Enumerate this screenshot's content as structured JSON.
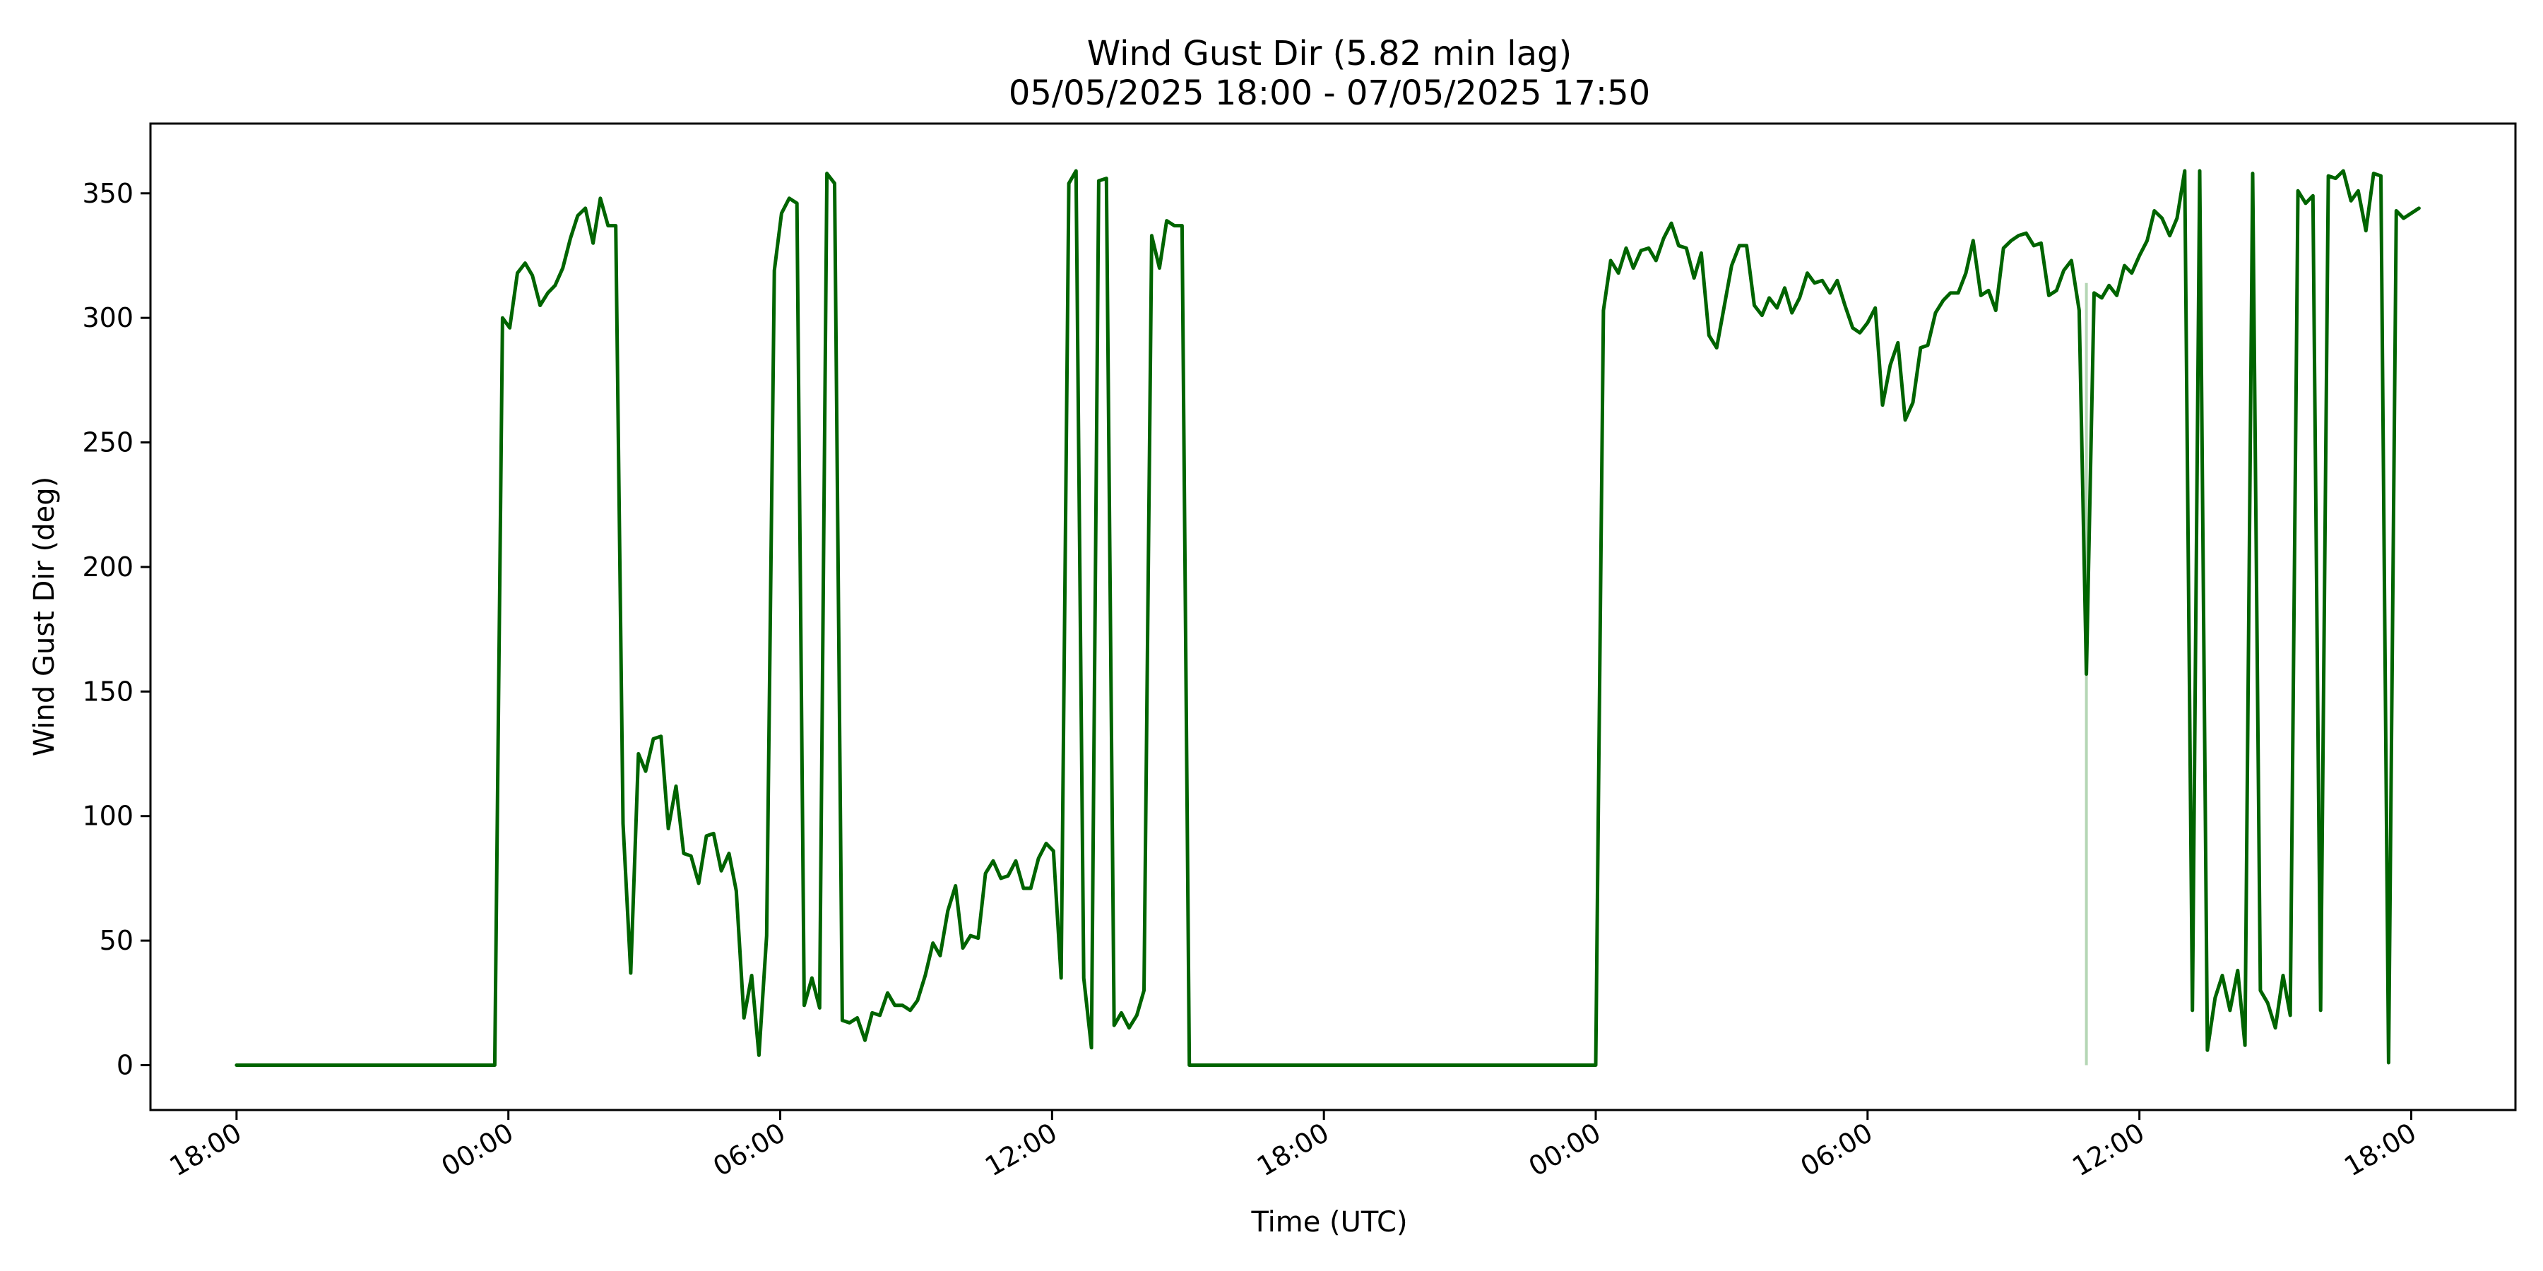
{
  "chart_data": {
    "type": "line",
    "title": "Wind Gust Dir (5.82 min lag)",
    "subtitle": "05/05/2025 18:00 - 07/05/2025 17:50",
    "xlabel": "Time (UTC)",
    "ylabel": "Wind Gust Dir (deg)",
    "x_unit": "hours since 05/05/2025 18:00 UTC",
    "xlim": [
      -1.9,
      50.3
    ],
    "ylim": [
      -18,
      378
    ],
    "grid": false,
    "line_color": "#006400",
    "x_ticks": [
      {
        "value": 0,
        "label": "18:00"
      },
      {
        "value": 6,
        "label": "00:00"
      },
      {
        "value": 12,
        "label": "06:00"
      },
      {
        "value": 18,
        "label": "12:00"
      },
      {
        "value": 24,
        "label": "18:00"
      },
      {
        "value": 30,
        "label": "00:00"
      },
      {
        "value": 36,
        "label": "06:00"
      },
      {
        "value": 42,
        "label": "12:00"
      },
      {
        "value": 48,
        "label": "18:00"
      }
    ],
    "y_ticks": [
      0,
      50,
      100,
      150,
      200,
      250,
      300,
      350
    ],
    "series": [
      {
        "name": "",
        "points": [
          [
            0.0,
            0
          ],
          [
            5.7,
            0
          ],
          [
            5.87,
            300
          ],
          [
            6.03,
            296
          ],
          [
            6.2,
            318
          ],
          [
            6.37,
            322
          ],
          [
            6.53,
            317
          ],
          [
            6.7,
            305
          ],
          [
            6.87,
            310
          ],
          [
            7.03,
            313
          ],
          [
            7.2,
            320
          ],
          [
            7.37,
            332
          ],
          [
            7.53,
            341
          ],
          [
            7.7,
            344
          ],
          [
            7.87,
            330
          ],
          [
            8.03,
            348
          ],
          [
            8.2,
            337
          ],
          [
            8.37,
            337
          ],
          [
            8.53,
            97
          ],
          [
            8.7,
            37
          ],
          [
            8.87,
            125
          ],
          [
            9.03,
            118
          ],
          [
            9.2,
            131
          ],
          [
            9.37,
            132
          ],
          [
            9.53,
            95
          ],
          [
            9.7,
            112
          ],
          [
            9.87,
            85
          ],
          [
            10.03,
            84
          ],
          [
            10.2,
            73
          ],
          [
            10.37,
            92
          ],
          [
            10.53,
            93
          ],
          [
            10.7,
            78
          ],
          [
            10.87,
            85
          ],
          [
            11.03,
            70
          ],
          [
            11.2,
            19
          ],
          [
            11.37,
            36
          ],
          [
            11.53,
            4
          ],
          [
            11.7,
            52
          ],
          [
            11.87,
            319
          ],
          [
            12.03,
            342
          ],
          [
            12.2,
            348
          ],
          [
            12.37,
            346
          ],
          [
            12.53,
            24
          ],
          [
            12.7,
            35
          ],
          [
            12.87,
            23
          ],
          [
            13.03,
            358
          ],
          [
            13.2,
            354
          ],
          [
            13.37,
            18
          ],
          [
            13.53,
            17
          ],
          [
            13.7,
            19
          ],
          [
            13.87,
            10
          ],
          [
            14.03,
            21
          ],
          [
            14.2,
            20
          ],
          [
            14.37,
            29
          ],
          [
            14.53,
            24
          ],
          [
            14.7,
            24
          ],
          [
            14.87,
            22
          ],
          [
            15.03,
            26
          ],
          [
            15.2,
            36
          ],
          [
            15.37,
            49
          ],
          [
            15.53,
            44
          ],
          [
            15.7,
            62
          ],
          [
            15.87,
            72
          ],
          [
            16.03,
            47
          ],
          [
            16.2,
            52
          ],
          [
            16.37,
            51
          ],
          [
            16.53,
            77
          ],
          [
            16.7,
            82
          ],
          [
            16.87,
            75
          ],
          [
            17.03,
            76
          ],
          [
            17.2,
            82
          ],
          [
            17.37,
            71
          ],
          [
            17.53,
            71
          ],
          [
            17.7,
            83
          ],
          [
            17.87,
            89
          ],
          [
            18.03,
            86
          ],
          [
            18.2,
            35
          ],
          [
            18.37,
            354
          ],
          [
            18.53,
            359
          ],
          [
            18.7,
            35
          ],
          [
            18.87,
            7
          ],
          [
            19.03,
            355
          ],
          [
            19.2,
            356
          ],
          [
            19.37,
            16
          ],
          [
            19.53,
            21
          ],
          [
            19.7,
            15
          ],
          [
            19.87,
            20
          ],
          [
            20.03,
            30
          ],
          [
            20.2,
            333
          ],
          [
            20.37,
            320
          ],
          [
            20.53,
            339
          ],
          [
            20.7,
            337
          ],
          [
            20.87,
            337
          ],
          [
            21.03,
            0
          ],
          [
            30.0,
            0
          ],
          [
            30.17,
            303
          ],
          [
            30.33,
            323
          ],
          [
            30.5,
            318
          ],
          [
            30.67,
            328
          ],
          [
            30.83,
            320
          ],
          [
            31.0,
            327
          ],
          [
            31.17,
            328
          ],
          [
            31.33,
            323
          ],
          [
            31.5,
            332
          ],
          [
            31.67,
            338
          ],
          [
            31.83,
            329
          ],
          [
            32.0,
            328
          ],
          [
            32.17,
            316
          ],
          [
            32.33,
            326
          ],
          [
            32.5,
            293
          ],
          [
            32.67,
            288
          ],
          [
            32.83,
            304
          ],
          [
            33.0,
            321
          ],
          [
            33.17,
            329
          ],
          [
            33.33,
            329
          ],
          [
            33.5,
            305
          ],
          [
            33.67,
            301
          ],
          [
            33.83,
            308
          ],
          [
            34.0,
            304
          ],
          [
            34.17,
            312
          ],
          [
            34.33,
            302
          ],
          [
            34.5,
            308
          ],
          [
            34.67,
            318
          ],
          [
            34.83,
            314
          ],
          [
            35.0,
            315
          ],
          [
            35.17,
            310
          ],
          [
            35.33,
            315
          ],
          [
            35.5,
            305
          ],
          [
            35.67,
            296
          ],
          [
            35.83,
            294
          ],
          [
            36.0,
            298
          ],
          [
            36.17,
            304
          ],
          [
            36.33,
            265
          ],
          [
            36.5,
            281
          ],
          [
            36.67,
            290
          ],
          [
            36.83,
            259
          ],
          [
            37.0,
            266
          ],
          [
            37.17,
            288
          ],
          [
            37.33,
            289
          ],
          [
            37.5,
            302
          ],
          [
            37.67,
            307
          ],
          [
            37.83,
            310
          ],
          [
            38.0,
            310
          ],
          [
            38.17,
            318
          ],
          [
            38.33,
            331
          ],
          [
            38.5,
            309
          ],
          [
            38.67,
            311
          ],
          [
            38.83,
            303
          ],
          [
            39.0,
            328
          ],
          [
            39.17,
            331
          ],
          [
            39.33,
            333
          ],
          [
            39.5,
            334
          ],
          [
            39.67,
            329
          ],
          [
            39.83,
            330
          ],
          [
            40.0,
            309
          ],
          [
            40.17,
            311
          ],
          [
            40.33,
            319
          ],
          [
            40.5,
            323
          ],
          [
            40.67,
            303
          ],
          [
            40.83,
            157
          ],
          [
            41.0,
            310
          ],
          [
            41.17,
            308
          ],
          [
            41.33,
            313
          ],
          [
            41.5,
            309
          ],
          [
            41.67,
            321
          ],
          [
            41.83,
            318
          ],
          [
            42.0,
            325
          ],
          [
            42.17,
            331
          ],
          [
            42.33,
            343
          ],
          [
            42.5,
            340
          ],
          [
            42.67,
            333
          ],
          [
            42.83,
            340
          ],
          [
            43.0,
            359
          ],
          [
            43.17,
            22
          ],
          [
            43.33,
            359
          ],
          [
            43.5,
            6
          ],
          [
            43.67,
            27
          ],
          [
            43.83,
            36
          ],
          [
            44.0,
            22
          ],
          [
            44.17,
            38
          ],
          [
            44.33,
            8
          ],
          [
            44.5,
            358
          ],
          [
            44.67,
            30
          ],
          [
            44.83,
            25
          ],
          [
            45.0,
            15
          ],
          [
            45.17,
            36
          ],
          [
            45.33,
            20
          ],
          [
            45.5,
            351
          ],
          [
            45.67,
            346
          ],
          [
            45.83,
            349
          ],
          [
            46.0,
            22
          ],
          [
            46.17,
            357
          ],
          [
            46.33,
            356
          ],
          [
            46.5,
            359
          ],
          [
            46.67,
            347
          ],
          [
            46.83,
            351
          ],
          [
            47.0,
            335
          ],
          [
            47.17,
            358
          ],
          [
            47.33,
            357
          ],
          [
            47.5,
            1
          ],
          [
            47.67,
            343
          ],
          [
            47.83,
            340
          ],
          [
            48.0,
            342
          ],
          [
            48.17,
            344
          ]
        ]
      }
    ],
    "faint_segments": [
      {
        "x": 40.83,
        "y_from": 0,
        "y_to": 314,
        "color": "#b5d6b5"
      }
    ]
  }
}
